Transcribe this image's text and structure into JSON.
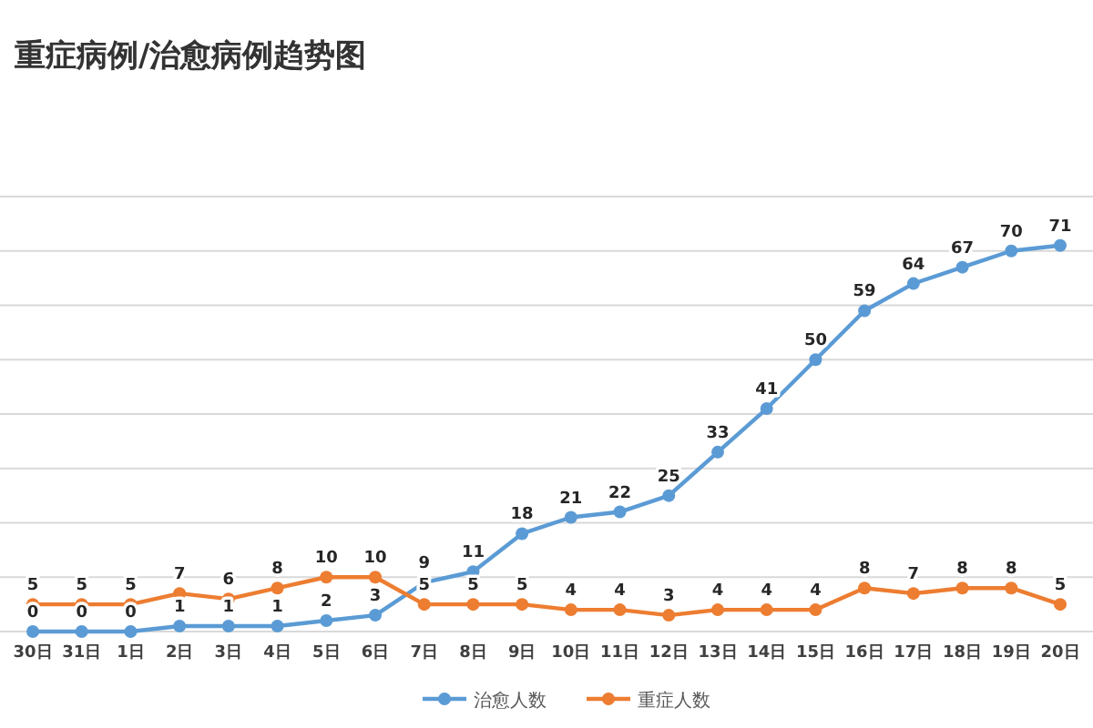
{
  "chart_data": {
    "type": "line",
    "title": "重症病例/治愈病例趋势图",
    "categories": [
      "30日",
      "31日",
      "1日",
      "2日",
      "3日",
      "4日",
      "5日",
      "6日",
      "7日",
      "8日",
      "9日",
      "10日",
      "11日",
      "12日",
      "13日",
      "14日",
      "15日",
      "16日",
      "17日",
      "18日",
      "19日",
      "20日"
    ],
    "series": [
      {
        "name": "治愈人数",
        "color": "#5b9bd5",
        "values": [
          0,
          0,
          0,
          1,
          1,
          1,
          2,
          3,
          9,
          11,
          18,
          21,
          22,
          25,
          33,
          41,
          50,
          59,
          64,
          67,
          70,
          71
        ]
      },
      {
        "name": "重症人数",
        "color": "#ed7d31",
        "values": [
          5,
          5,
          5,
          7,
          6,
          8,
          10,
          10,
          5,
          5,
          5,
          4,
          4,
          3,
          4,
          4,
          4,
          8,
          7,
          8,
          8,
          5
        ]
      }
    ],
    "ylim": [
      0,
      80
    ],
    "yticks": [
      {
        "value": 0,
        "label": null
      },
      {
        "value": 10,
        "label": null
      },
      {
        "value": 20,
        "label": null
      },
      {
        "value": 30,
        "label": null
      },
      {
        "value": 40,
        "label": null
      },
      {
        "value": 50,
        "label": null
      },
      {
        "value": 60,
        "label": null
      },
      {
        "value": 70,
        "label": null
      },
      {
        "value": 80,
        "label": null
      }
    ],
    "tick_labels": "x",
    "grid": "y",
    "legend": "bottom",
    "marker": "circle",
    "data_labels": true
  }
}
